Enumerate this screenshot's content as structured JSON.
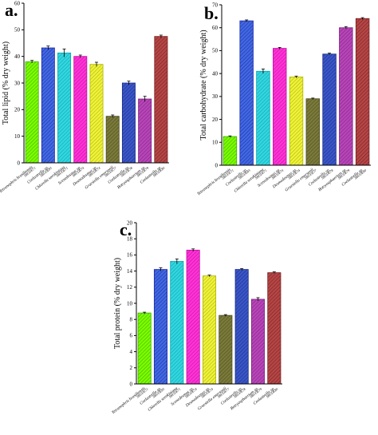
{
  "palette": {
    "fills": [
      "#7CFC00",
      "#4169E1",
      "#33D6E0",
      "#FF33D6",
      "#EEF23C",
      "#7A7A3A",
      "#3A56C7",
      "#B845B8",
      "#B44646"
    ],
    "strokes": [
      "#3DB000",
      "#1F2BA8",
      "#0AA2AD",
      "#C010A0",
      "#B0B400",
      "#4C4C20",
      "#1B2C88",
      "#7C2480",
      "#7A1F1F"
    ]
  },
  "chart_data": [
    {
      "type": "bar",
      "panel": "a.",
      "ylabel": "Total lipid (% dry weight)",
      "ylim": [
        0,
        60
      ],
      "yticks": [
        0,
        10,
        20,
        30,
        40,
        50,
        60
      ],
      "categories": [
        "Tetranephris brasiliensis",
        "Coelastrella sp.",
        "Chlorella sorokiniana",
        "Scenedesmus sp.",
        "Desmodesmus sp.",
        "Graesiella emersonii",
        "Coelastrella sp.",
        "Botryosphaerium sp.",
        "Coelastrella sp."
      ],
      "sublabels": [
        "SBUDE71",
        "SBUDE83",
        "SBUDE71",
        "SBUDE74",
        "SBUDE74",
        "SBUDE77",
        "SBUDE78",
        "SBUDE79",
        "SBUDE80"
      ],
      "values": [
        38,
        43.2,
        41.3,
        40,
        37,
        17.5,
        30,
        24,
        47.5
      ],
      "errors": [
        0.5,
        0.7,
        1.5,
        0.5,
        0.8,
        0.5,
        0.7,
        1.0,
        0.5
      ]
    },
    {
      "type": "bar",
      "panel": "b.",
      "ylabel": "Total carbohydrate (% dry weight)",
      "ylim": [
        0,
        70
      ],
      "yticks": [
        0,
        10,
        20,
        30,
        40,
        50,
        60,
        70
      ],
      "categories": [
        "Tetranephris brasiliensis",
        "Coelastrella sp.",
        "Chlorella sorokiniana",
        "Scenedesmus sp.",
        "Desmodesmus sp.",
        "Graesiella emersonii",
        "Coelastrella sp.",
        "Botryosphaerium sp.",
        "Coelastrella sp."
      ],
      "sublabels": [
        "SBUDE71",
        "SBUDE83",
        "SBUDE71",
        "SBUDE74",
        "SBUDE74",
        "SBUDE77",
        "SBUDE78",
        "SBUDE79",
        "SBUDE80"
      ],
      "values": [
        12.5,
        63,
        41,
        51,
        38.5,
        29,
        48.5,
        60,
        64
      ],
      "errors": [
        0.3,
        0.4,
        1.0,
        0.4,
        0.4,
        0.3,
        0.4,
        0.5,
        0.4
      ]
    },
    {
      "type": "bar",
      "panel": "c.",
      "ylabel": "Total protein (% dry weight)",
      "ylim": [
        0,
        20
      ],
      "yticks": [
        0,
        2,
        4,
        6,
        8,
        10,
        12,
        14,
        16,
        18,
        20
      ],
      "categories": [
        "Tetranephris brasiliensis",
        "Coelastrella sp.",
        "Chlorella sorokiniana",
        "Scenedesmus sp.",
        "Desmodesmus sp.",
        "Graesiella emersonii",
        "Coelastrella sp.",
        "Botryosphaerium sp.",
        "Coelastrella sp."
      ],
      "sublabels": [
        "SBUDE71",
        "SBUDE83",
        "SBUDE71",
        "SBUDE74",
        "SBUDE74",
        "SBUDE77",
        "SBUDE78",
        "SBUDE79",
        "SBUDE80"
      ],
      "values": [
        8.8,
        14.2,
        15.2,
        16.6,
        13.4,
        8.5,
        14.2,
        10.5,
        13.8
      ],
      "errors": [
        0.1,
        0.2,
        0.3,
        0.15,
        0.1,
        0.1,
        0.1,
        0.2,
        0.1
      ]
    }
  ]
}
